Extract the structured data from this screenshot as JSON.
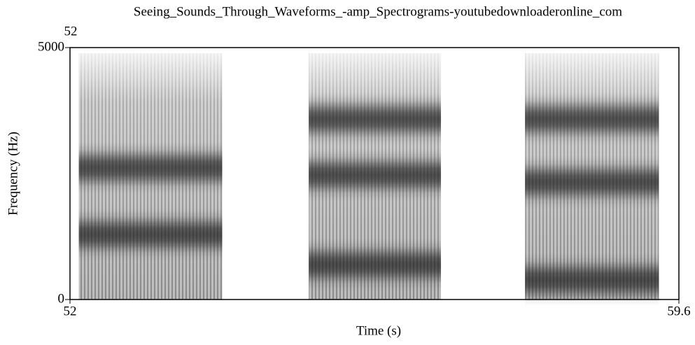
{
  "chart_data": {
    "type": "spectrogram",
    "title": "Seeing_Sounds_Through_Waveforms_-amp_Spectrograms-youtubedownloaderonline_com",
    "start_label": "52",
    "xlabel": "Time (s)",
    "ylabel": "Frequency (Hz)",
    "xlim": [
      52,
      59.6
    ],
    "ylim": [
      0,
      5000
    ],
    "xticks": [
      52,
      59.6
    ],
    "yticks": [
      0,
      5000
    ],
    "segments": [
      {
        "start": 52.11,
        "end": 53.9,
        "formants": [
          1290,
          2610
        ]
      },
      {
        "start": 54.98,
        "end": 56.63,
        "formants": [
          690,
          2470,
          3580
        ]
      },
      {
        "start": 57.68,
        "end": 59.35,
        "formants": [
          390,
          2330,
          3580
        ]
      }
    ]
  }
}
